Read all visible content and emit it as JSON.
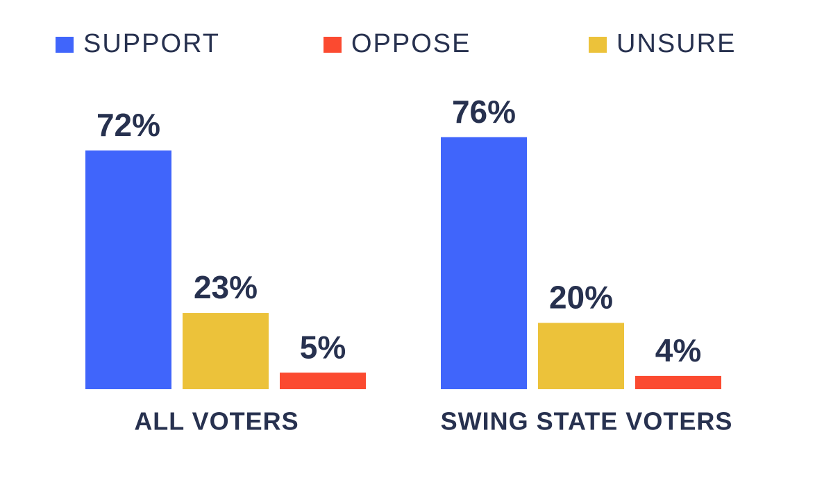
{
  "chart_data": {
    "type": "bar",
    "categories": [
      "ALL VOTERS",
      "SWING STATE VOTERS"
    ],
    "series": [
      {
        "name": "SUPPORT",
        "color": "#4065fb",
        "values": [
          72,
          76
        ],
        "value_labels": [
          "72%",
          "76%"
        ]
      },
      {
        "name": "OPPOSE",
        "color": "#fb4a30",
        "values": [
          5,
          4
        ],
        "value_labels": [
          "5%",
          "4%"
        ]
      },
      {
        "name": "UNSURE",
        "color": "#ecc23a",
        "values": [
          23,
          20
        ],
        "value_labels": [
          "23%",
          "20%"
        ]
      }
    ]
  }
}
